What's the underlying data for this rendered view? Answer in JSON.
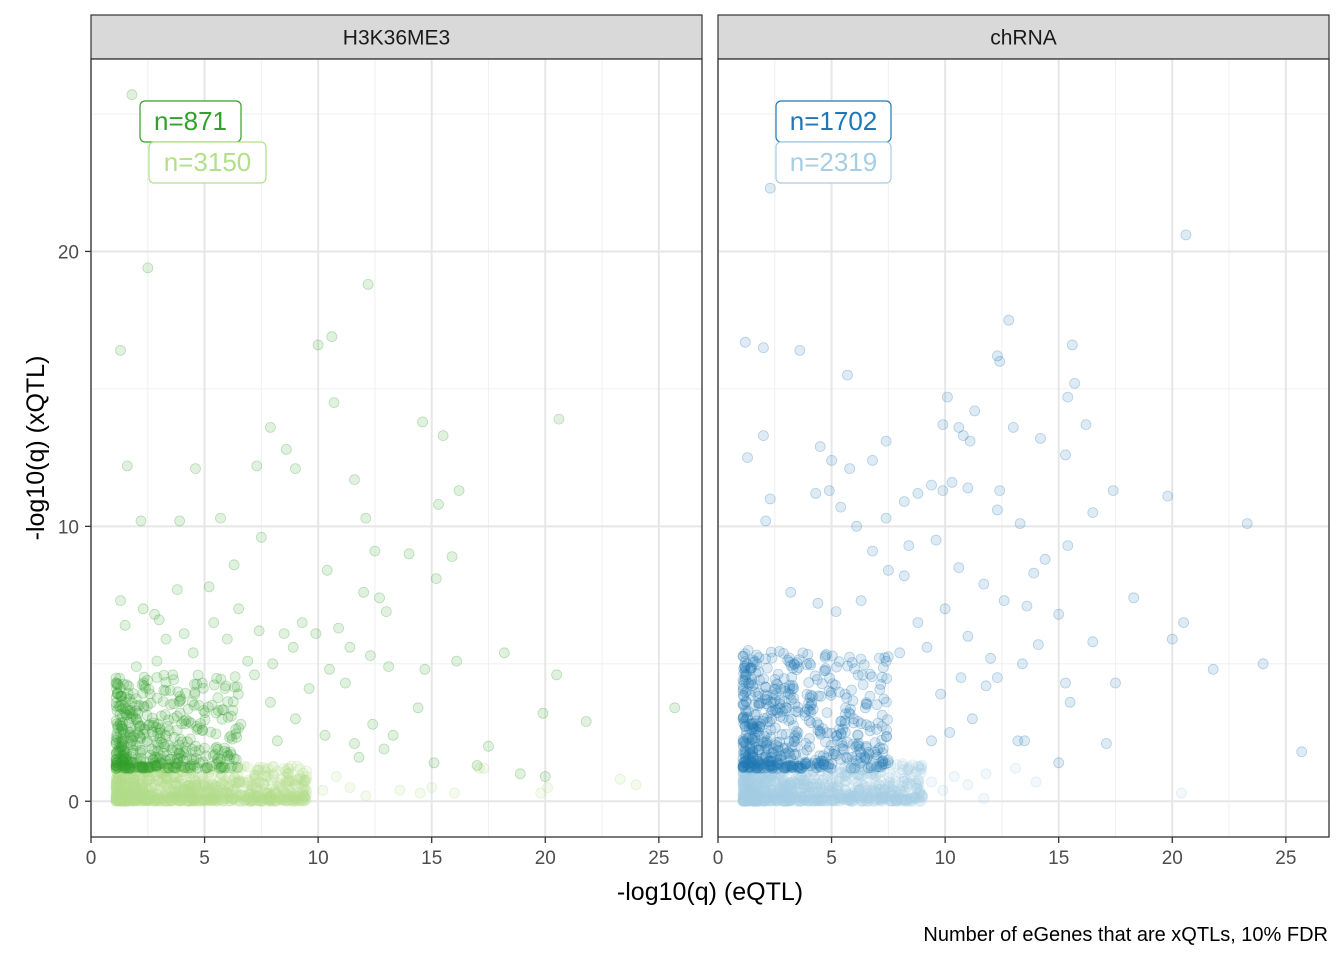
{
  "chart_data": {
    "type": "scatter",
    "facets": [
      "H3K36ME3",
      "chRNA"
    ],
    "xlabel": "-log10(q) (eQTL)",
    "ylabel": "-log10(q) (xQTL)",
    "caption": "Number of eGenes that are xQTLs, 10% FDR",
    "x_ticks": [
      "0",
      "5",
      "10",
      "15",
      "20",
      "25"
    ],
    "y_ticks": [
      "0",
      "10",
      "20"
    ],
    "xlim": [
      0,
      26.9
    ],
    "ylim": [
      -1.3,
      27.0
    ],
    "grid": true,
    "panels": [
      {
        "facet": "H3K36ME3",
        "labels": [
          {
            "text": "n=871",
            "color": "#33a02c"
          },
          {
            "text": "n=3150",
            "color": "#b2df8a"
          }
        ],
        "series": [
          {
            "group": "n=871",
            "color": "#33a02c",
            "points": [
              [
                1.8,
                25.7
              ],
              [
                1.3,
                16.4
              ],
              [
                2.5,
                19.4
              ],
              [
                1.6,
                12.2
              ],
              [
                2.2,
                10.2
              ],
              [
                3.9,
                10.2
              ],
              [
                5.7,
                10.3
              ],
              [
                7.5,
                9.6
              ],
              [
                7.9,
                13.6
              ],
              [
                8.6,
                12.8
              ],
              [
                9.0,
                12.1
              ],
              [
                10.0,
                16.6
              ],
              [
                10.6,
                16.9
              ],
              [
                10.7,
                14.5
              ],
              [
                12.2,
                18.8
              ],
              [
                11.6,
                11.7
              ],
              [
                12.1,
                10.3
              ],
              [
                12.5,
                9.1
              ],
              [
                14.6,
                13.8
              ],
              [
                15.5,
                13.3
              ],
              [
                16.2,
                11.3
              ],
              [
                15.3,
                10.8
              ],
              [
                15.9,
                8.9
              ],
              [
                20.6,
                13.9
              ],
              [
                18.2,
                5.4
              ],
              [
                16.1,
                5.1
              ],
              [
                20.5,
                4.6
              ],
              [
                25.7,
                3.4
              ],
              [
                21.8,
                2.9
              ],
              [
                19.9,
                3.2
              ],
              [
                17.5,
                2.0
              ],
              [
                4.6,
                12.1
              ],
              [
                7.3,
                12.2
              ],
              [
                6.3,
                8.6
              ],
              [
                10.4,
                8.4
              ],
              [
                9.9,
                6.1
              ],
              [
                13.0,
                6.9
              ],
              [
                14.0,
                9.0
              ],
              [
                15.2,
                8.1
              ],
              [
                13.1,
                4.9
              ],
              [
                14.7,
                4.8
              ],
              [
                11.2,
                4.3
              ],
              [
                6.5,
                7.0
              ],
              [
                5.2,
                7.8
              ],
              [
                3.8,
                7.7
              ],
              [
                1.3,
                7.3
              ],
              [
                2.8,
                6.8
              ],
              [
                8.5,
                6.1
              ],
              [
                12.0,
                7.6
              ],
              [
                12.7,
                7.4
              ],
              [
                14.4,
                3.4
              ],
              [
                13.3,
                2.4
              ],
              [
                12.4,
                2.8
              ],
              [
                11.6,
                2.1
              ],
              [
                9.0,
                3.0
              ],
              [
                6.0,
                5.9
              ],
              [
                7.2,
                4.6
              ],
              [
                9.6,
                4.1
              ],
              [
                10.5,
                4.8
              ],
              [
                7.4,
                6.2
              ],
              [
                8.9,
                5.6
              ],
              [
                3.3,
                5.9
              ],
              [
                4.5,
                5.4
              ],
              [
                2.6,
                3.9
              ],
              [
                3.1,
                3.1
              ],
              [
                4.3,
                2.9
              ],
              [
                6.6,
                2.8
              ],
              [
                5.6,
                3.3
              ],
              [
                7.9,
                3.6
              ],
              [
                8.2,
                2.2
              ],
              [
                10.3,
                2.4
              ],
              [
                11.8,
                1.6
              ],
              [
                12.9,
                1.9
              ],
              [
                15.1,
                1.4
              ],
              [
                17.0,
                1.3
              ],
              [
                18.9,
                1.0
              ],
              [
                20.0,
                0.9
              ],
              [
                2.0,
                4.9
              ],
              [
                2.9,
                5.1
              ],
              [
                3.6,
                4.6
              ],
              [
                4.9,
                4.3
              ],
              [
                5.9,
                4.1
              ],
              [
                1.5,
                6.4
              ],
              [
                2.3,
                7.0
              ],
              [
                4.1,
                6.1
              ],
              [
                3.0,
                6.6
              ],
              [
                5.4,
                6.5
              ],
              [
                6.9,
                5.1
              ],
              [
                9.3,
                6.5
              ],
              [
                8.0,
                5.0
              ],
              [
                10.9,
                6.3
              ],
              [
                11.4,
                5.6
              ],
              [
                12.3,
                5.3
              ]
            ],
            "cluster": {
              "x_range": [
                1.1,
                6.5
              ],
              "y_range": [
                1.2,
                4.6
              ],
              "count": 420
            }
          },
          {
            "group": "n=3150",
            "color": "#b2df8a",
            "points": [
              [
                14.5,
                0.3
              ],
              [
                15.0,
                0.5
              ],
              [
                17.1,
                1.2
              ],
              [
                17.3,
                1.2
              ],
              [
                20.1,
                0.5
              ],
              [
                23.3,
                0.8
              ],
              [
                24.0,
                0.6
              ],
              [
                19.8,
                0.3
              ],
              [
                16.0,
                0.3
              ],
              [
                13.6,
                0.4
              ],
              [
                12.1,
                0.2
              ],
              [
                11.4,
                0.5
              ],
              [
                10.8,
                0.9
              ],
              [
                10.2,
                0.4
              ],
              [
                9.5,
                0.9
              ],
              [
                9.0,
                0.2
              ],
              [
                8.6,
                0.7
              ],
              [
                8.1,
                0.4
              ]
            ],
            "cluster": {
              "x_range": [
                1.1,
                9.5
              ],
              "y_range": [
                0.0,
                1.3
              ],
              "count": 900
            }
          }
        ]
      },
      {
        "facet": "chRNA",
        "labels": [
          {
            "text": "n=1702",
            "color": "#1f78b4"
          },
          {
            "text": "n=2319",
            "color": "#a6cee3"
          }
        ],
        "series": [
          {
            "group": "n=1702",
            "color": "#1f78b4",
            "points": [
              [
                2.3,
                22.3
              ],
              [
                20.6,
                20.6
              ],
              [
                12.8,
                17.5
              ],
              [
                1.2,
                16.7
              ],
              [
                2.0,
                16.5
              ],
              [
                3.6,
                16.4
              ],
              [
                5.7,
                15.5
              ],
              [
                12.3,
                16.2
              ],
              [
                12.4,
                16.0
              ],
              [
                15.6,
                16.6
              ],
              [
                15.7,
                15.2
              ],
              [
                15.4,
                14.7
              ],
              [
                1.3,
                12.5
              ],
              [
                2.0,
                13.3
              ],
              [
                4.5,
                12.9
              ],
              [
                5.0,
                12.4
              ],
              [
                5.8,
                12.1
              ],
              [
                6.8,
                12.4
              ],
              [
                7.4,
                13.1
              ],
              [
                10.1,
                14.7
              ],
              [
                11.3,
                14.2
              ],
              [
                9.9,
                13.7
              ],
              [
                10.6,
                13.6
              ],
              [
                10.8,
                13.3
              ],
              [
                11.1,
                13.1
              ],
              [
                13.0,
                13.6
              ],
              [
                14.2,
                13.2
              ],
              [
                15.3,
                12.6
              ],
              [
                16.2,
                13.7
              ],
              [
                17.4,
                11.3
              ],
              [
                19.8,
                11.1
              ],
              [
                23.3,
                10.1
              ],
              [
                16.5,
                10.5
              ],
              [
                15.4,
                9.3
              ],
              [
                14.4,
                8.8
              ],
              [
                13.9,
                8.3
              ],
              [
                13.3,
                10.1
              ],
              [
                12.3,
                10.6
              ],
              [
                12.4,
                11.3
              ],
              [
                11.0,
                11.4
              ],
              [
                10.3,
                11.6
              ],
              [
                9.9,
                11.3
              ],
              [
                9.4,
                11.5
              ],
              [
                8.8,
                11.2
              ],
              [
                8.2,
                10.9
              ],
              [
                7.4,
                10.3
              ],
              [
                6.1,
                10.0
              ],
              [
                5.4,
                10.7
              ],
              [
                4.9,
                11.3
              ],
              [
                4.3,
                11.2
              ],
              [
                2.3,
                11.0
              ],
              [
                2.1,
                10.2
              ],
              [
                18.3,
                7.4
              ],
              [
                20.0,
                5.9
              ],
              [
                20.5,
                6.5
              ],
              [
                16.5,
                5.8
              ],
              [
                15.0,
                6.8
              ],
              [
                24.0,
                5.0
              ],
              [
                21.8,
                4.8
              ],
              [
                17.5,
                4.3
              ],
              [
                15.3,
                4.3
              ],
              [
                15.5,
                3.6
              ],
              [
                13.2,
                2.2
              ],
              [
                13.5,
                2.2
              ],
              [
                15.0,
                1.4
              ],
              [
                17.1,
                2.1
              ],
              [
                25.7,
                1.8
              ],
              [
                12.3,
                4.5
              ],
              [
                11.8,
                4.2
              ],
              [
                10.7,
                4.5
              ],
              [
                9.8,
                3.9
              ],
              [
                11.0,
                6.0
              ],
              [
                10.0,
                7.0
              ],
              [
                8.8,
                6.5
              ],
              [
                8.2,
                8.2
              ],
              [
                7.5,
                8.4
              ],
              [
                6.3,
                7.3
              ],
              [
                5.2,
                6.9
              ],
              [
                4.4,
                7.2
              ],
              [
                3.2,
                7.6
              ],
              [
                6.8,
                9.1
              ],
              [
                8.4,
                9.3
              ],
              [
                9.6,
                9.5
              ],
              [
                10.6,
                8.5
              ],
              [
                11.7,
                7.9
              ],
              [
                12.6,
                7.3
              ],
              [
                13.6,
                7.1
              ],
              [
                14.1,
                5.7
              ],
              [
                13.4,
                5.0
              ],
              [
                12.0,
                5.2
              ],
              [
                9.2,
                5.6
              ],
              [
                8.0,
                5.4
              ],
              [
                11.2,
                3.0
              ],
              [
                10.2,
                2.5
              ],
              [
                9.4,
                2.2
              ]
            ],
            "cluster": {
              "x_range": [
                1.1,
                7.5
              ],
              "y_range": [
                1.2,
                5.5
              ],
              "count": 560
            }
          },
          {
            "group": "n=2319",
            "color": "#a6cee3",
            "points": [
              [
                20.4,
                0.3
              ],
              [
                14.0,
                0.7
              ],
              [
                13.1,
                1.2
              ],
              [
                11.8,
                1.0
              ],
              [
                11.0,
                0.6
              ],
              [
                10.4,
                0.9
              ],
              [
                9.9,
                0.4
              ],
              [
                9.4,
                0.7
              ],
              [
                8.9,
                0.3
              ],
              [
                8.5,
                0.6
              ],
              [
                11.7,
                0.1
              ]
            ],
            "cluster": {
              "x_range": [
                1.1,
                9.0
              ],
              "y_range": [
                0.0,
                1.4
              ],
              "count": 900
            }
          }
        ]
      }
    ]
  }
}
